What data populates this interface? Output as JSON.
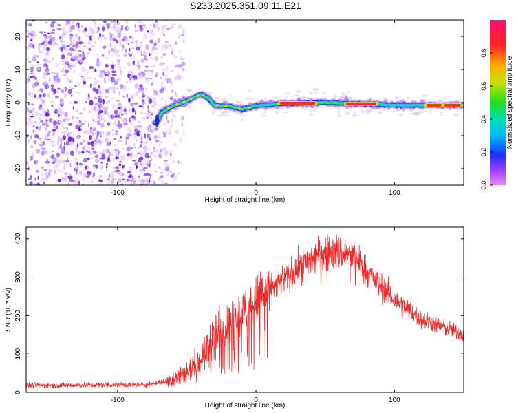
{
  "title": "S233.2025.351.09.11.E21",
  "chart_data": [
    {
      "type": "heatmap",
      "name": "spectrogram",
      "xlabel": "Height of straight line (km)",
      "ylabel": "Frequency (Hz)",
      "xlim": [
        -166,
        150
      ],
      "ylim": [
        -25,
        25
      ],
      "xticks": [
        -100,
        0,
        100
      ],
      "yticks": [
        -20,
        -10,
        0,
        10,
        20
      ],
      "noise_region": [
        -166,
        -60
      ],
      "ridge": [
        {
          "x": -72,
          "y": -6
        },
        {
          "x": -68,
          "y": -3
        },
        {
          "x": -60,
          "y": -1
        },
        {
          "x": -50,
          "y": 0.5
        },
        {
          "x": -45,
          "y": 1.5
        },
        {
          "x": -40,
          "y": 2.5
        },
        {
          "x": -35,
          "y": 1.5
        },
        {
          "x": -30,
          "y": -0.8
        },
        {
          "x": -20,
          "y": -1
        },
        {
          "x": -10,
          "y": -2
        },
        {
          "x": 0,
          "y": -1
        },
        {
          "x": 20,
          "y": -0.3
        },
        {
          "x": 50,
          "y": 0
        },
        {
          "x": 100,
          "y": -0.8
        },
        {
          "x": 150,
          "y": -0.8
        }
      ],
      "hot_segments": [
        [
          17,
          43
        ],
        [
          65,
          87
        ],
        [
          123,
          134
        ],
        [
          136,
          148
        ]
      ],
      "colorbar": {
        "label": "Normalized spectral amplitude",
        "ticks": [
          "0.0",
          "0.2",
          "0.4",
          "0.6",
          "0.8"
        ],
        "range": [
          0,
          1
        ]
      }
    },
    {
      "type": "line",
      "name": "snr",
      "xlabel": "Height of straight line (km)",
      "ylabel": "SNR (10 * v/v)",
      "xlim": [
        -166,
        150
      ],
      "ylim": [
        0,
        430
      ],
      "xticks": [
        -100,
        0,
        100
      ],
      "yticks": [
        0,
        100,
        200,
        300,
        400
      ],
      "color": "#ee2a2a",
      "envelope": {
        "x": [
          -166,
          -80,
          -65,
          -50,
          -40,
          -30,
          -20,
          -10,
          0,
          20,
          40,
          50,
          60,
          70,
          80,
          100,
          120,
          150
        ],
        "y": [
          18,
          20,
          28,
          50,
          85,
          140,
          175,
          205,
          235,
          295,
          345,
          362,
          365,
          355,
          315,
          240,
          190,
          150
        ]
      }
    }
  ]
}
